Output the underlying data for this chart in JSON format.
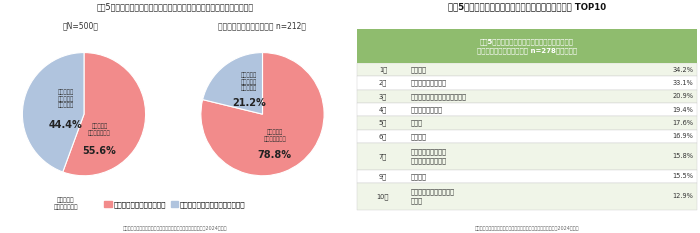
{
  "title_left": "直近5年間のインテリアグッズ（家具・装飾）の新規購入や買い換え有無",
  "title_right": "直近5年間で新規購入や買い換えたインテリアグッズ TOP10",
  "subtitle1": "（N=500）",
  "subtitle2": "（インテリアにこだわる派 n=212）",
  "pie1_values": [
    55.6,
    44.4
  ],
  "pie2_values": [
    78.8,
    21.2
  ],
  "pie_colors": [
    "#f28b8b",
    "#b0c4de"
  ],
  "legend_labels": [
    "新規購入や買い換えをした",
    "新規購入や買い換えをしていない"
  ],
  "table_header": "直近5年間でインテリアグッズ（家具・装飾）の\n新規購入や買い換えした人 n=278・複数回答",
  "table_header_bg": "#8fbc6e",
  "table_row_bg_even": "#f0f5e8",
  "table_row_bg_odd": "#ffffff",
  "table_rows": [
    {
      "rank": "1位",
      "item": "カーテン",
      "value": "34.2%"
    },
    {
      "rank": "2位",
      "item": "ラグ・カーペット類",
      "value": "33.1%"
    },
    {
      "rank": "3位",
      "item": "クッション・クッションカバー",
      "value": "20.9%"
    },
    {
      "rank": "4位",
      "item": "その他の照明器具",
      "value": "19.4%"
    },
    {
      "rank": "5位",
      "item": "ソファ",
      "value": "17.6%"
    },
    {
      "rank": "6位",
      "item": "掛け時計",
      "value": "16.9%"
    },
    {
      "rank": "7位",
      "item": "ダイニングテーブル\n観葉植物・花・造花",
      "value": "15.8%"
    },
    {
      "rank": "9位",
      "item": "テレビ台",
      "value": "15.5%"
    },
    {
      "rank": "10位",
      "item": "インテリア小物・装飾額\nベッド",
      "value": "12.9%"
    }
  ],
  "footer": "積水ハウス株式会社　住生活研究所「インテリアに関する調査（2024年）」",
  "bg_color": "#ffffff"
}
